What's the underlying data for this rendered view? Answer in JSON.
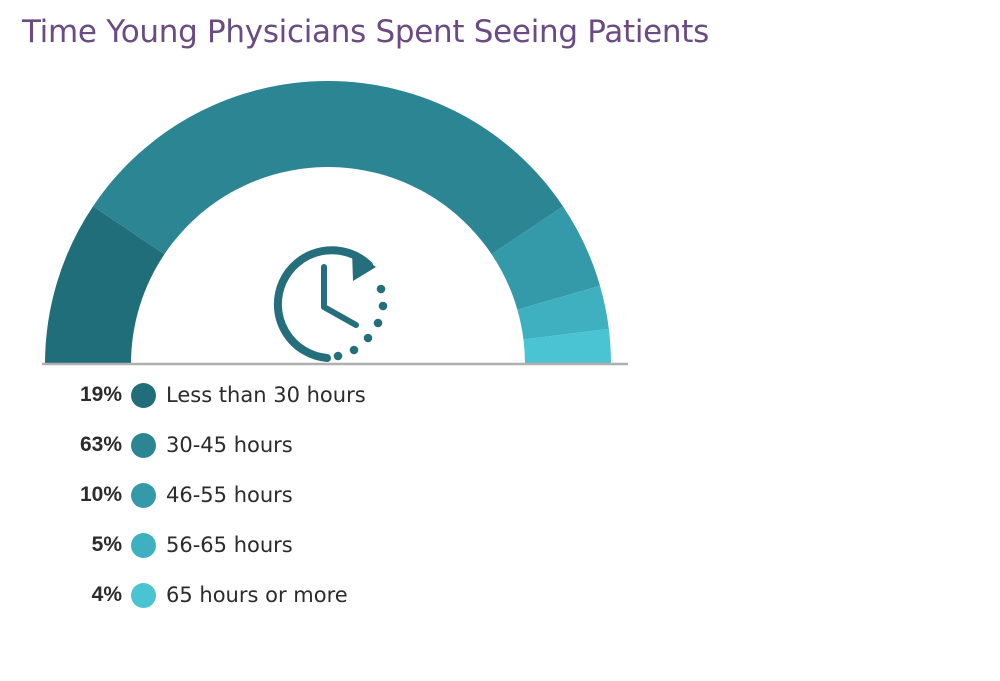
{
  "chart_data": {
    "type": "pie",
    "title": "Time Young Physicians Spent Seeing Patients",
    "style": "semicircle-gauge",
    "icon": "clock-with-arrow-icon",
    "slices": [
      {
        "label": "Less than 30 hours",
        "value": 19,
        "display": "19%",
        "color": "#1f6e7a"
      },
      {
        "label": "30-45 hours",
        "value": 63,
        "display": "63%",
        "color": "#2c8593"
      },
      {
        "label": "46-55 hours",
        "value": 10,
        "display": "10%",
        "color": "#3499a8"
      },
      {
        "label": "56-65 hours",
        "value": 5,
        "display": "5%",
        "color": "#3eb0c0"
      },
      {
        "label": "65 hours or more",
        "value": 4,
        "display": "4%",
        "color": "#4ac3d3"
      }
    ],
    "legend_position": "bottom-left"
  }
}
